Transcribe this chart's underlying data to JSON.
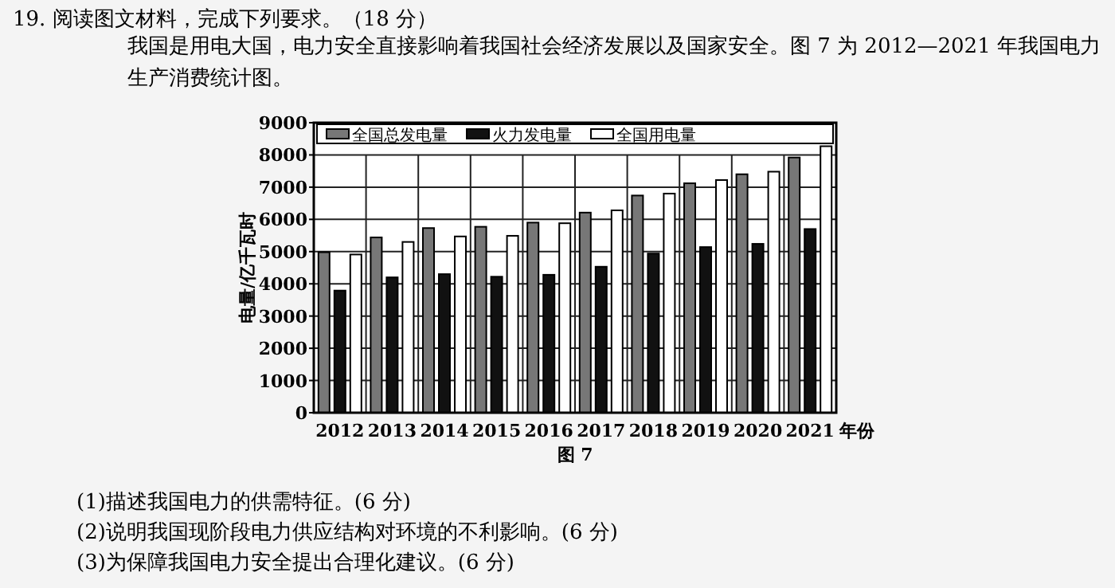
{
  "chart_data": {
    "type": "bar",
    "title": "19. 阅读图文材料，完成下列要求。（18 分）",
    "subtitle": "我国是用电大国，电力安全直接影响着我国社会经济发展以及国家安全。图 7 为 2012—2021 年我国电力生产消费统计图。",
    "xlabel": "年份",
    "ylabel": "电量/亿千瓦时",
    "categories": [
      "2012",
      "2013",
      "2014",
      "2015",
      "2016",
      "2017",
      "2018",
      "2019",
      "2020",
      "2021"
    ],
    "series": [
      {
        "name": "全国总发电量",
        "color": "#777777",
        "values": [
          4980,
          5440,
          5730,
          5770,
          5900,
          6210,
          6740,
          7120,
          7400,
          7920
        ]
      },
      {
        "name": "火力发电量",
        "color": "#111111",
        "values": [
          3790,
          4200,
          4300,
          4220,
          4280,
          4530,
          4940,
          5140,
          5240,
          5700
        ]
      },
      {
        "name": "全国用电量",
        "color": "#ffffff",
        "values": [
          4910,
          5300,
          5470,
          5490,
          5880,
          6280,
          6800,
          7220,
          7480,
          8270
        ]
      }
    ],
    "ylim": [
      0,
      9000
    ],
    "yticks": [
      0,
      1000,
      2000,
      3000,
      4000,
      5000,
      6000,
      7000,
      8000,
      9000
    ],
    "grid": true,
    "legend": "top",
    "annotations": [
      "图 7",
      "(1)描述我国电力的供需特征。(6 分)",
      "(2)说明我国现阶段电力供应结构对环境的不利影响。(6 分)",
      "(3)为保障我国电力安全提出合理化建议。(6 分)"
    ]
  }
}
